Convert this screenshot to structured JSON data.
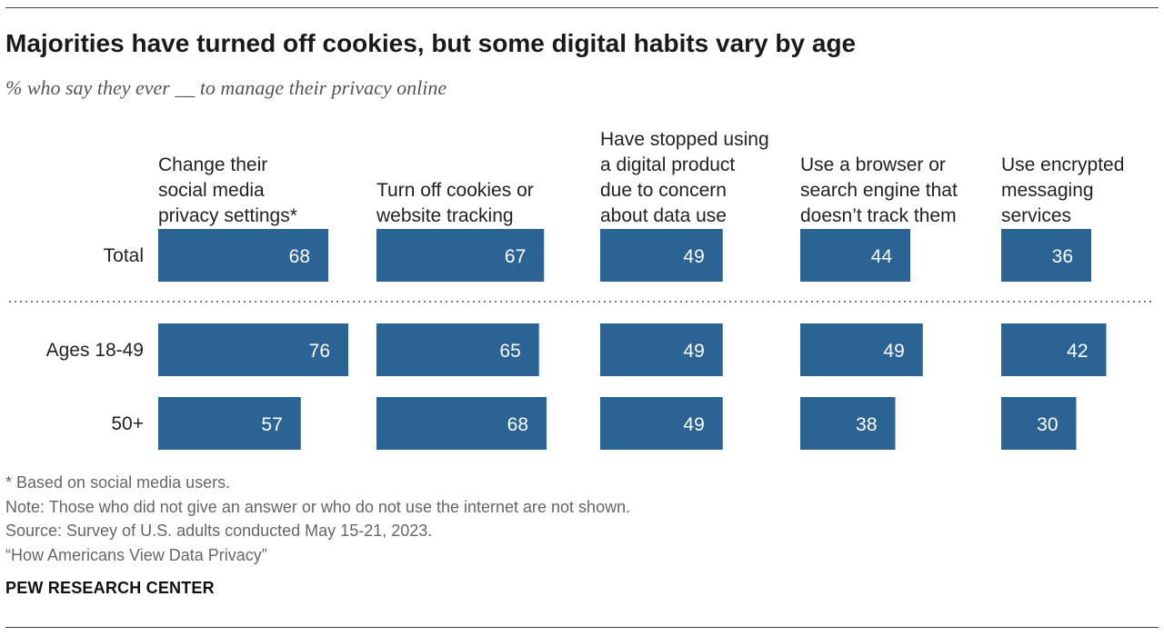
{
  "title": "Majorities have turned off cookies, but some digital habits vary by age",
  "subtitle": "% who say they ever __ to manage their privacy online",
  "chart_data": {
    "type": "bar",
    "orientation": "horizontal",
    "layout": "small-multiples",
    "categories": [
      "Change their social media privacy settings*",
      "Turn off cookies or website tracking",
      "Have stopped using a digital product due to concern about data use",
      "Use a browser or search engine that doesn't track them",
      "Use encrypted messaging services"
    ],
    "category_lines": [
      [
        "Change their",
        "social media",
        "privacy settings*"
      ],
      [
        "Turn off cookies or",
        "website tracking"
      ],
      [
        "Have stopped using",
        "a digital product",
        "due to concern",
        "about data use"
      ],
      [
        "Use a browser or",
        "search engine that",
        "doesn’t track them"
      ],
      [
        "Use encrypted",
        "messaging",
        "services"
      ]
    ],
    "series": [
      {
        "name": "Total",
        "values": [
          68,
          67,
          49,
          44,
          36
        ]
      },
      {
        "name": "Ages 18-49",
        "values": [
          76,
          65,
          49,
          49,
          42
        ]
      },
      {
        "name": "50+",
        "values": [
          57,
          68,
          49,
          38,
          30
        ]
      }
    ],
    "xlim": [
      0,
      100
    ],
    "bar_color": "#2b6494",
    "label_color": "#ffffff",
    "grid": false,
    "divider": "dotted line between Total and age groups"
  },
  "footnotes": [
    "* Based on social media users.",
    "Note: Those who did not give an answer or who do not use the internet are not shown.",
    "Source: Survey of U.S. adults conducted May 15-21, 2023.",
    "“How Americans View Data Privacy”"
  ],
  "brand": "PEW RESEARCH CENTER"
}
